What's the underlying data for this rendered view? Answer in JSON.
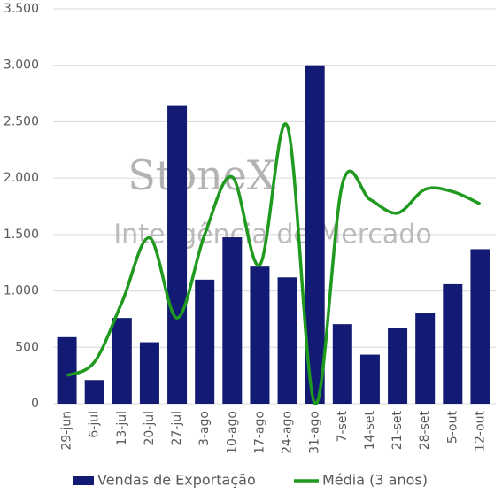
{
  "chart_data": {
    "type": "bar-line",
    "watermark": [
      "StoneX",
      "Inteligência de Mercado"
    ],
    "categories": [
      "29-jun",
      "6-jul",
      "13-jul",
      "20-jul",
      "27-jul",
      "3-ago",
      "10-ago",
      "17-ago",
      "24-ago",
      "31-ago",
      "7-set",
      "14-set",
      "21-set",
      "28-set",
      "5-out",
      "12-out"
    ],
    "series": [
      {
        "name": "Vendas de Exportação",
        "type": "bar",
        "color": "#121a73",
        "values": [
          590,
          210,
          760,
          545,
          2640,
          1100,
          1475,
          1215,
          1120,
          3000,
          705,
          435,
          670,
          805,
          1060,
          1370
        ]
      },
      {
        "name": "Média (3 anos)",
        "type": "line",
        "color": "#1f9a1f",
        "values": [
          250,
          370,
          900,
          1470,
          760,
          1500,
          2010,
          1230,
          2460,
          0,
          1950,
          1810,
          1690,
          1900,
          1880,
          1770
        ]
      }
    ],
    "ylim": [
      0,
      3500
    ],
    "yticks": [
      0,
      500,
      {
        "value": 1000,
        "label": "1.000"
      },
      {
        "value": 1500,
        "label": "1.500"
      },
      {
        "value": 2000,
        "label": "2.000"
      },
      {
        "value": 2500,
        "label": "2.500"
      },
      {
        "value": 3000,
        "label": "3.000"
      },
      {
        "value": 3500,
        "label": "3.500"
      }
    ],
    "grid": true,
    "legend": "bottom"
  }
}
